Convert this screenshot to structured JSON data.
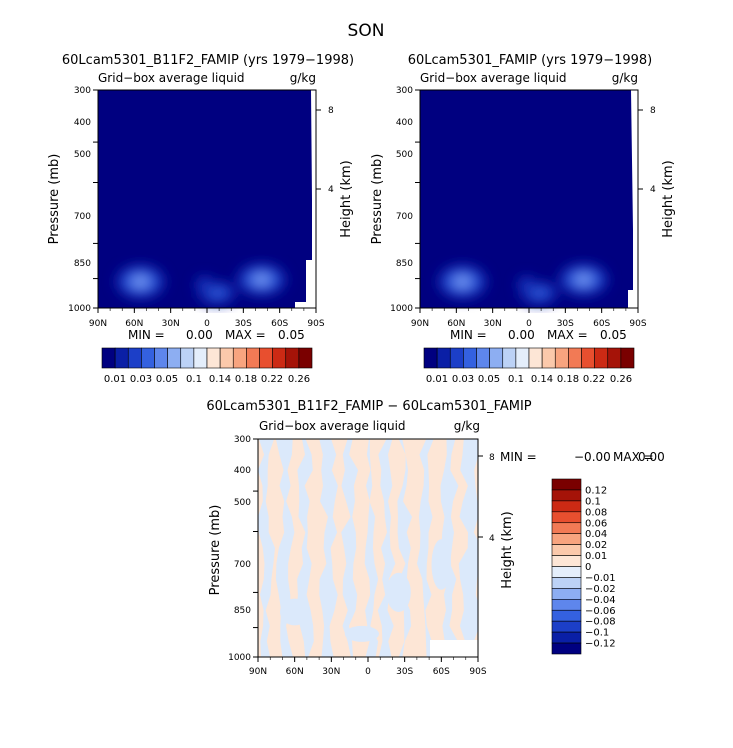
{
  "figure": {
    "title": "SON"
  },
  "chart_data": [
    {
      "type": "heatmap",
      "title": "60Lcam5301_B11F2_FAMIP (yrs 1979−1998)",
      "subtitle_left": "Grid−box average liquid",
      "subtitle_right": "g/kg",
      "ylabel": "Pressure (mb)",
      "ylabel_right": "Height (km)",
      "x_ticks": [
        "90N",
        "60N",
        "30N",
        "0",
        "30S",
        "60S",
        "90S"
      ],
      "y_ticks": [
        "300",
        "400",
        "500",
        "700",
        "850",
        "1000"
      ],
      "y_ticks_right": [
        "8",
        "4"
      ],
      "xlim": [
        90,
        -90
      ],
      "ylim": [
        1000,
        300
      ],
      "stats": {
        "min_label": "MIN =",
        "min": "0.00",
        "max_label": "MAX =",
        "max": "0.05"
      },
      "colorbar_labels": [
        "0.01",
        "0.03",
        "0.05",
        "0.1",
        "0.14",
        "0.18",
        "0.22",
        "0.26"
      ],
      "colors": [
        "#000080",
        "#0a1fa6",
        "#1c3fc8",
        "#3461e0",
        "#5e86ec",
        "#8daef2",
        "#bcd2f6",
        "#e4eefb",
        "#fde6d6",
        "#fbc9ab",
        "#f8a47f",
        "#f27a55",
        "#e84f2f",
        "#cc2a14",
        "#a51308",
        "#7a0000"
      ],
      "features": [
        {
          "lat": 55,
          "p": 865,
          "dlat": 18,
          "dp": 75,
          "value": 0.05
        },
        {
          "lat": -45,
          "p": 855,
          "dlat": 18,
          "dp": 70,
          "value": 0.05
        },
        {
          "lat": -8,
          "p": 920,
          "dlat": 15,
          "dp": 55,
          "value": 0.035
        },
        {
          "lat": 2,
          "p": 880,
          "dlat": 8,
          "dp": 45,
          "value": 0.025
        }
      ]
    },
    {
      "type": "heatmap",
      "title": "60Lcam5301_FAMIP (yrs 1979−1998)",
      "subtitle_left": "Grid−box average liquid",
      "subtitle_right": "g/kg",
      "ylabel": "Pressure (mb)",
      "ylabel_right": "Height (km)",
      "x_ticks": [
        "90N",
        "60N",
        "30N",
        "0",
        "30S",
        "60S",
        "90S"
      ],
      "y_ticks": [
        "300",
        "400",
        "500",
        "700",
        "850",
        "1000"
      ],
      "y_ticks_right": [
        "8",
        "4"
      ],
      "xlim": [
        90,
        -90
      ],
      "ylim": [
        1000,
        300
      ],
      "stats": {
        "min_label": "MIN =",
        "min": "0.00",
        "max_label": "MAX =",
        "max": "0.05"
      },
      "colorbar_labels": [
        "0.01",
        "0.03",
        "0.05",
        "0.1",
        "0.14",
        "0.18",
        "0.22",
        "0.26"
      ],
      "colors": [
        "#000080",
        "#0a1fa6",
        "#1c3fc8",
        "#3461e0",
        "#5e86ec",
        "#8daef2",
        "#bcd2f6",
        "#e4eefb",
        "#fde6d6",
        "#fbc9ab",
        "#f8a47f",
        "#f27a55",
        "#e84f2f",
        "#cc2a14",
        "#a51308",
        "#7a0000"
      ],
      "features": [
        {
          "lat": 55,
          "p": 865,
          "dlat": 18,
          "dp": 75,
          "value": 0.05
        },
        {
          "lat": -45,
          "p": 855,
          "dlat": 18,
          "dp": 70,
          "value": 0.05
        },
        {
          "lat": -8,
          "p": 920,
          "dlat": 15,
          "dp": 55,
          "value": 0.035
        },
        {
          "lat": 2,
          "p": 880,
          "dlat": 8,
          "dp": 45,
          "value": 0.025
        }
      ]
    },
    {
      "type": "heatmap",
      "title": "60Lcam5301_B11F2_FAMIP − 60Lcam5301_FAMIP",
      "subtitle_left": "Grid−box average liquid",
      "subtitle_right": "g/kg",
      "ylabel": "Pressure (mb)",
      "ylabel_right": "Height (km)",
      "x_ticks": [
        "90N",
        "60N",
        "30N",
        "0",
        "30S",
        "60S",
        "90S"
      ],
      "y_ticks": [
        "300",
        "400",
        "500",
        "700",
        "850",
        "1000"
      ],
      "y_ticks_right": [
        "8",
        "4"
      ],
      "xlim": [
        90,
        -90
      ],
      "ylim": [
        1000,
        300
      ],
      "stats": {
        "min_label": "MIN =",
        "min": "−0.00",
        "max_label": "MAX =",
        "max": "0.00"
      },
      "colorbar_labels": [
        "0.12",
        "0.1",
        "0.08",
        "0.06",
        "0.04",
        "0.02",
        "0.01",
        "0",
        "−0.01",
        "−0.02",
        "−0.04",
        "−0.06",
        "−0.08",
        "−0.1",
        "−0.12"
      ],
      "colors": [
        "#7a0000",
        "#a51308",
        "#cc2a14",
        "#e84f2f",
        "#f27a55",
        "#f8a47f",
        "#fbc9ab",
        "#fde6d6",
        "#e4eefb",
        "#bcd2f6",
        "#8daef2",
        "#5e86ec",
        "#3461e0",
        "#1c3fc8",
        "#0a1fa6",
        "#000080"
      ],
      "pattern": {
        "positive_color": "#fde6d6",
        "negative_color": "#dbe9fb",
        "value_range": [
          -0.01,
          0.01
        ]
      }
    }
  ]
}
